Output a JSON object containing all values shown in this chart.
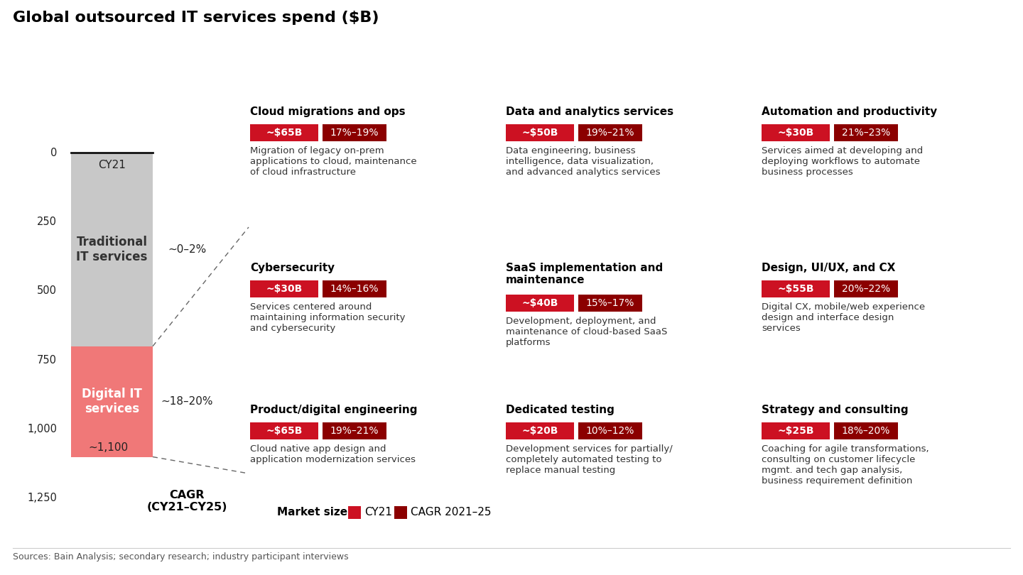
{
  "title": "Global outsourced IT services spend ($B)",
  "background_color": "#ffffff",
  "bar_traditional_color": "#c8c8c8",
  "bar_digital_color": "#f07878",
  "bar_traditional_value": 700,
  "bar_digital_value": 400,
  "bar_total": 1100,
  "bar_label": "CY21",
  "bar_total_label": "~1,100",
  "cagr_title": "CAGR\n(CY21–CY25)",
  "cagr_digital": "~18–20%",
  "cagr_traditional": "~0–2%",
  "digital_label": "Digital IT\nservices",
  "traditional_label": "Traditional\nIT services",
  "red_color": "#cc1122",
  "dark_red_color": "#8b0000",
  "sources_text": "Sources: Bain Analysis; secondary research; industry participant interviews",
  "legend_market_size": "Market size",
  "legend_cy21": "CY21",
  "legend_cagr": "CAGR 2021–25",
  "sectors": [
    {
      "col": 0,
      "row": 0,
      "title": "Cloud migrations and ops",
      "market": "~$65B",
      "cagr": "17%–19%",
      "description": "Migration of legacy on-prem\napplications to cloud, maintenance\nof cloud infrastructure"
    },
    {
      "col": 0,
      "row": 1,
      "title": "Cybersecurity",
      "market": "~$30B",
      "cagr": "14%–16%",
      "description": "Services centered around\nmaintaining information security\nand cybersecurity"
    },
    {
      "col": 0,
      "row": 2,
      "title": "Product/digital engineering",
      "market": "~$65B",
      "cagr": "19%–21%",
      "description": "Cloud native app design and\napplication modernization services"
    },
    {
      "col": 1,
      "row": 0,
      "title": "Data and analytics services",
      "market": "~$50B",
      "cagr": "19%–21%",
      "description": "Data engineering, business\nintelligence, data visualization,\nand advanced analytics services"
    },
    {
      "col": 1,
      "row": 1,
      "title": "SaaS implementation and\nmaintenance",
      "market": "~$40B",
      "cagr": "15%–17%",
      "description": "Development, deployment, and\nmaintenance of cloud-based SaaS\nplatforms"
    },
    {
      "col": 1,
      "row": 2,
      "title": "Dedicated testing",
      "market": "~$20B",
      "cagr": "10%–12%",
      "description": "Development services for partially/\ncompletely automated testing to\nreplace manual testing"
    },
    {
      "col": 2,
      "row": 0,
      "title": "Automation and productivity",
      "market": "~$30B",
      "cagr": "21%–23%",
      "description": "Services aimed at developing and\ndeploying workflows to automate\nbusiness processes"
    },
    {
      "col": 2,
      "row": 1,
      "title": "Design, UI/UX, and CX",
      "market": "~$55B",
      "cagr": "20%–22%",
      "description": "Digital CX, mobile/web experience\ndesign and interface design\nservices"
    },
    {
      "col": 2,
      "row": 2,
      "title": "Strategy and consulting",
      "market": "~$25B",
      "cagr": "18%–20%",
      "description": "Coaching for agile transformations,\nconsulting on customer lifecycle\nmgmt. and tech gap analysis,\nbusiness requirement definition"
    }
  ]
}
